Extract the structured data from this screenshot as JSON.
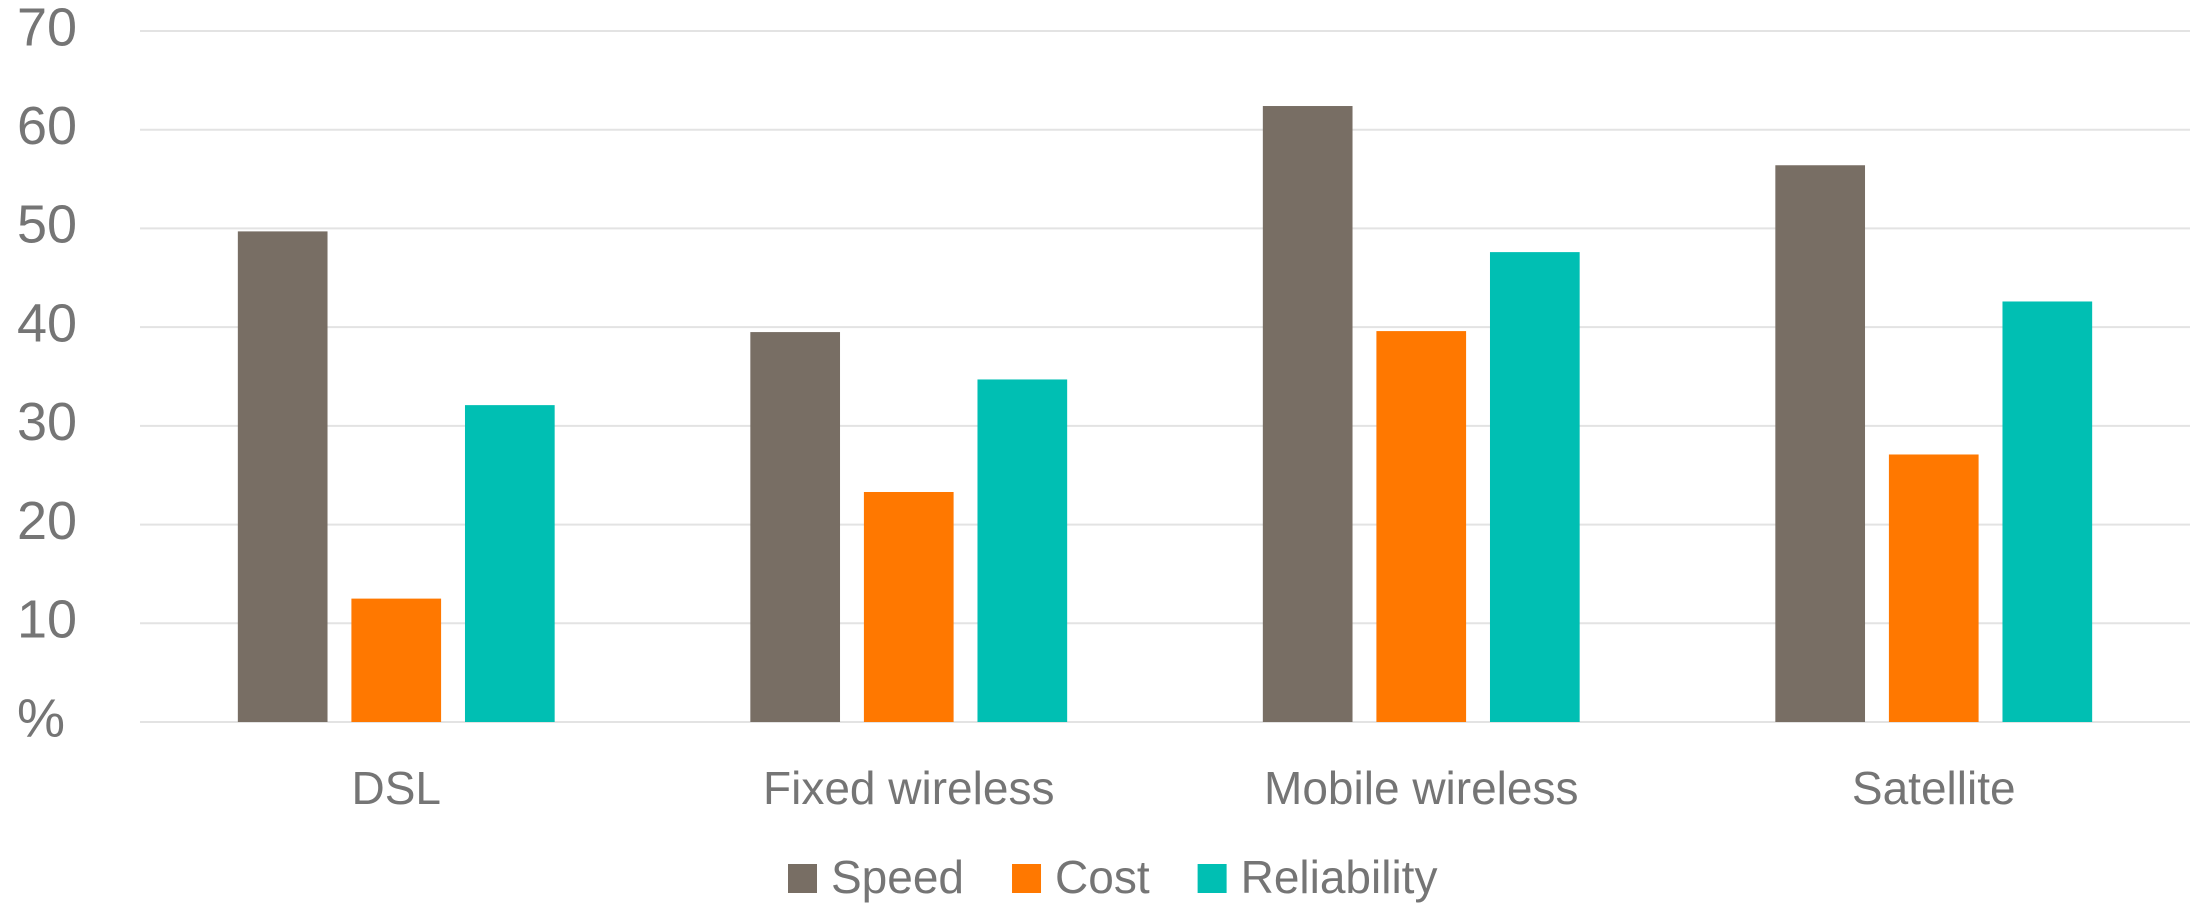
{
  "chart_data": {
    "type": "bar",
    "categories": [
      "DSL",
      "Fixed wireless",
      "Mobile wireless",
      "Satellite"
    ],
    "series": [
      {
        "name": "Speed",
        "color": "#786e64",
        "values": [
          49.7,
          39.5,
          62.4,
          56.4
        ]
      },
      {
        "name": "Cost",
        "color": "#ff7800",
        "values": [
          12.5,
          23.3,
          39.6,
          27.1
        ]
      },
      {
        "name": "Reliability",
        "color": "#00bfb3",
        "values": [
          32.1,
          34.7,
          47.6,
          42.6
        ]
      }
    ],
    "ylim": [
      0,
      70
    ],
    "yticks": [
      {
        "value": 0,
        "label": "%"
      },
      10,
      20,
      30,
      40,
      50,
      60,
      70
    ],
    "grid": true,
    "legend": "bottom"
  }
}
